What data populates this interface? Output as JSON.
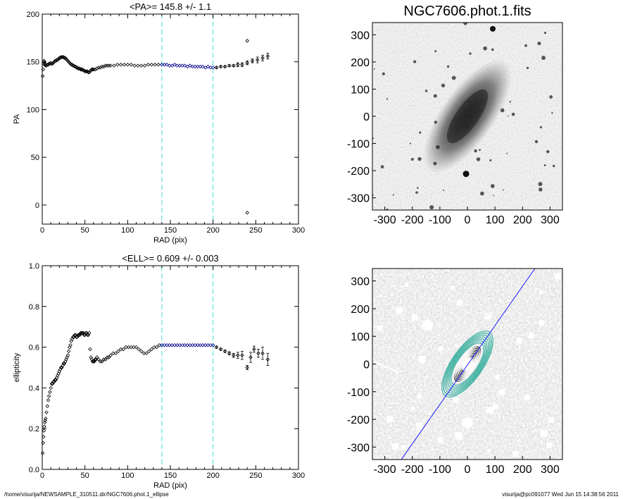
{
  "footer": {
    "path": "/home/visurija/NEWSAMPLE_310511.dir/NGC7606.phot.1_ellipse",
    "user_stamp": "visurija@pc091077  Wed Jun 15 14:38:56 2011"
  },
  "colors": {
    "axis": "#000000",
    "data_points": "#000000",
    "fit_points": "#00008b",
    "range_lines": "#40e0d0",
    "contours_inner": "#ffffff",
    "contours_outer": "#3cb0a0",
    "major_axis_line": "#1a1aff"
  },
  "chart_data": [
    {
      "type": "scatter",
      "title": "<PA>= 145.8 +/-   1.1",
      "xlabel": "RAD (pix)",
      "ylabel": "PA",
      "xlim": [
        0,
        300
      ],
      "ylim": [
        -20,
        200
      ],
      "xticks": [
        "0",
        "50",
        "100",
        "150",
        "200",
        "250",
        "300"
      ],
      "yticks": [
        "0",
        "50",
        "100",
        "150",
        "200"
      ],
      "fit_range": [
        140,
        200
      ],
      "mean_value": 145.8,
      "mean_error": 1.1,
      "series": [
        {
          "x": [
            0.5,
            1,
            1.5,
            2,
            2.5,
            3,
            3.5,
            4,
            5,
            6,
            7,
            8,
            9,
            10,
            11,
            12,
            13,
            14,
            15,
            16,
            17,
            18,
            19,
            20,
            21,
            22,
            23,
            24,
            25,
            26,
            27,
            28,
            29,
            30,
            31,
            32,
            33,
            34,
            35,
            36,
            37,
            38,
            39,
            40,
            41,
            42,
            43,
            44,
            45,
            46,
            47,
            48,
            49,
            50,
            51,
            52,
            53,
            54,
            55,
            56,
            57,
            58,
            59,
            60,
            62,
            64,
            66,
            68,
            70,
            72,
            74,
            76,
            78,
            80,
            84,
            88,
            92,
            96,
            100,
            104,
            108,
            112,
            116,
            120,
            124,
            128,
            132,
            136
          ],
          "y": [
            135,
            142,
            148,
            151,
            150,
            148,
            147,
            146,
            146,
            147,
            147,
            148,
            148,
            149,
            148,
            148,
            149,
            150,
            151,
            151,
            152,
            152,
            153,
            154,
            154,
            155,
            155,
            155,
            155,
            154,
            154,
            153,
            152,
            151,
            150,
            149,
            148,
            147,
            147,
            146,
            146,
            145,
            145,
            144,
            144,
            143,
            143,
            143,
            142,
            142,
            142,
            141,
            141,
            140,
            140,
            140,
            140,
            139,
            139,
            140,
            141,
            142,
            142,
            142,
            142,
            143,
            144,
            144,
            145,
            145,
            146,
            146,
            146,
            146,
            146,
            147,
            147,
            147,
            147,
            147,
            146,
            146,
            146,
            146,
            147,
            147,
            147,
            147
          ]
        },
        {
          "name": "fit",
          "x": [
            140,
            143,
            146,
            149,
            152,
            155,
            158,
            161,
            164,
            167,
            170,
            173,
            176,
            179,
            182,
            185,
            188,
            191,
            194,
            197,
            200
          ],
          "y": [
            147,
            147,
            147,
            146,
            146,
            147,
            146,
            146,
            146,
            146,
            145,
            146,
            145,
            145,
            145,
            145,
            145,
            144,
            145,
            144,
            144
          ]
        },
        {
          "x": [
            204,
            209,
            214,
            219,
            224,
            229,
            234,
            240,
            246,
            252,
            258,
            264
          ],
          "y": [
            144,
            145,
            145,
            146,
            146,
            147,
            147,
            149,
            151,
            152,
            154,
            156
          ],
          "yerr": [
            1,
            1,
            1,
            1,
            1,
            2,
            2,
            2,
            2,
            3,
            3,
            3
          ]
        },
        {
          "x": [
            240,
            240
          ],
          "y": [
            172,
            -8
          ]
        }
      ]
    },
    {
      "type": "image",
      "title": "NGC7606.phot.1.fits",
      "xticks": [
        "-300",
        "-200",
        "-100",
        "0",
        "100",
        "200",
        "300"
      ],
      "yticks": [
        "-300",
        "-200",
        "-100",
        "0",
        "100",
        "200",
        "300"
      ],
      "xlim": [
        -345,
        345
      ],
      "ylim": [
        -345,
        345
      ]
    },
    {
      "type": "scatter",
      "title": "<ELL>= 0.609 +/-  0.003",
      "xlabel": "RAD (pix)",
      "ylabel": "ellipticity",
      "xlim": [
        0,
        300
      ],
      "ylim": [
        0,
        1
      ],
      "xticks": [
        "0",
        "50",
        "100",
        "150",
        "200",
        "250",
        "300"
      ],
      "yticks": [
        "0.0",
        "0.2",
        "0.4",
        "0.6",
        "0.8",
        "1.0"
      ],
      "fit_range": [
        140,
        200
      ],
      "mean_value": 0.609,
      "mean_error": 0.003,
      "series": [
        {
          "x": [
            0.5,
            1,
            1.5,
            2,
            2.5,
            3,
            3.5,
            4,
            5,
            6,
            7,
            8,
            9,
            10,
            11,
            12,
            13,
            14,
            15,
            16,
            17,
            18,
            19,
            20,
            21,
            22,
            23,
            24,
            25,
            26,
            27,
            28,
            29,
            30,
            31,
            32,
            33,
            34,
            35,
            36,
            37,
            38,
            39,
            40,
            41,
            42,
            43,
            44,
            45,
            46,
            47,
            48,
            49,
            50,
            51,
            52,
            53,
            54,
            55
          ],
          "y": [
            0.08,
            0.13,
            0.16,
            0.19,
            0.21,
            0.23,
            0.24,
            0.25,
            0.28,
            0.31,
            0.34,
            0.36,
            0.38,
            0.4,
            0.42,
            0.42,
            0.43,
            0.43,
            0.44,
            0.44,
            0.45,
            0.46,
            0.47,
            0.48,
            0.49,
            0.5,
            0.5,
            0.51,
            0.52,
            0.52,
            0.53,
            0.54,
            0.55,
            0.56,
            0.58,
            0.6,
            0.61,
            0.63,
            0.64,
            0.65,
            0.65,
            0.66,
            0.66,
            0.65,
            0.65,
            0.66,
            0.66,
            0.66,
            0.67,
            0.67,
            0.67,
            0.67,
            0.66,
            0.66,
            0.67,
            0.67,
            0.66,
            0.66,
            0.67
          ]
        },
        {
          "x": [
            56,
            57,
            58,
            59,
            60,
            61,
            62,
            63,
            64,
            66,
            68,
            70,
            72,
            74,
            76,
            78,
            80,
            83,
            86,
            89,
            92,
            95,
            98,
            101,
            104,
            107,
            110,
            113,
            116,
            119,
            122,
            125,
            128,
            131,
            134,
            137
          ],
          "y": [
            0.59,
            0.55,
            0.54,
            0.53,
            0.53,
            0.53,
            0.54,
            0.54,
            0.55,
            0.54,
            0.53,
            0.53,
            0.54,
            0.54,
            0.55,
            0.55,
            0.56,
            0.57,
            0.57,
            0.58,
            0.59,
            0.59,
            0.6,
            0.6,
            0.6,
            0.6,
            0.6,
            0.59,
            0.58,
            0.57,
            0.57,
            0.58,
            0.59,
            0.6,
            0.6,
            0.61
          ]
        },
        {
          "name": "fit",
          "x": [
            140,
            143,
            146,
            149,
            152,
            155,
            158,
            161,
            164,
            167,
            170,
            173,
            176,
            179,
            182,
            185,
            188,
            191,
            194,
            197,
            200
          ],
          "y": [
            0.61,
            0.61,
            0.61,
            0.61,
            0.61,
            0.61,
            0.61,
            0.61,
            0.61,
            0.61,
            0.61,
            0.61,
            0.61,
            0.61,
            0.61,
            0.61,
            0.61,
            0.61,
            0.61,
            0.61,
            0.61
          ]
        },
        {
          "x": [
            204,
            209,
            214,
            219,
            224,
            229,
            234,
            240,
            244,
            248,
            253,
            258,
            264
          ],
          "y": [
            0.6,
            0.59,
            0.58,
            0.57,
            0.56,
            0.56,
            0.56,
            0.5,
            0.55,
            0.59,
            0.57,
            0.57,
            0.54
          ],
          "yerr": [
            0.005,
            0.005,
            0.006,
            0.008,
            0.01,
            0.015,
            0.02,
            0.01,
            0.025,
            0.015,
            0.02,
            0.03,
            0.03
          ]
        }
      ]
    },
    {
      "type": "image",
      "xticks": [
        "-300",
        "-200",
        "-100",
        "0",
        "100",
        "200",
        "300"
      ],
      "yticks": [
        "-300",
        "-200",
        "-100",
        "0",
        "100",
        "200",
        "300"
      ],
      "xlim": [
        -345,
        345
      ],
      "ylim": [
        -345,
        345
      ],
      "ellipse_pa_deg": 145.8,
      "ellipse_ellipticity": 0.609
    }
  ]
}
